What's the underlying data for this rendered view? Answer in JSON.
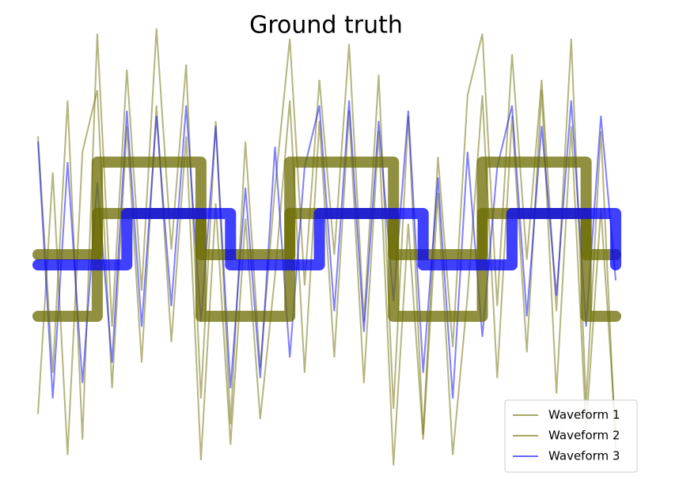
{
  "chart_data": {
    "type": "line",
    "title": "Ground truth",
    "x": [
      0,
      1,
      2,
      3,
      4,
      5,
      6,
      7,
      8,
      9,
      10,
      11,
      12,
      13,
      14,
      15,
      16,
      17,
      18,
      19,
      20,
      21,
      22,
      23,
      24,
      25,
      26,
      27,
      28,
      29,
      30,
      31,
      32,
      33,
      34,
      35,
      36,
      37,
      38,
      39
    ],
    "xlim": [
      0,
      39
    ],
    "ylim": [
      -4,
      4.7
    ],
    "legend": "lower right",
    "series": [
      {
        "name": "Waveform 1",
        "color": "#6b6b00",
        "levels": [
          0.2,
          0.2,
          0.2,
          0.2,
          2,
          2,
          2,
          2,
          2,
          2,
          2,
          0.2,
          0.2,
          0.2,
          0.2,
          0.2,
          0.2,
          2,
          2,
          2,
          2,
          2,
          2,
          2,
          0.2,
          0.2,
          0.2,
          0.2,
          0.2,
          0.2,
          2,
          2,
          2,
          2,
          2,
          2,
          2,
          0.2,
          0.2,
          0.2
        ],
        "values": [
          2.5,
          -2.1,
          3.2,
          -3.4,
          4.5,
          -1.2,
          3.8,
          -0.5,
          4.6,
          0.3,
          3.9,
          -2.6,
          2.8,
          -3.1,
          2.4,
          -2.0,
          1.5,
          4.4,
          -0.4,
          3.6,
          0.2,
          4.3,
          -1.1,
          3.7,
          -2.8,
          2.9,
          -3.3,
          2.1,
          -1.6,
          3.3,
          4.5,
          -0.8,
          4.1,
          0.1,
          3.6,
          -0.9,
          4.4,
          -2.7,
          2.6,
          -3.6
        ]
      },
      {
        "name": "Waveform 2",
        "color": "#6b6b00",
        "levels": [
          -1,
          -1,
          -1,
          -1,
          1,
          1,
          1,
          1,
          1,
          1,
          1,
          -1,
          -1,
          -1,
          -1,
          -1,
          -1,
          1,
          1,
          1,
          1,
          1,
          1,
          1,
          -1,
          -1,
          -1,
          -1,
          -1,
          -1,
          1,
          1,
          1,
          1,
          1,
          1,
          1,
          -1,
          -1,
          -1
        ],
        "values": [
          -2.9,
          1.8,
          -3.7,
          2.2,
          3.4,
          -2.4,
          2.7,
          -1.9,
          3.1,
          -1.5,
          2.5,
          -3.8,
          1.2,
          -3.5,
          0.9,
          -3.0,
          -0.2,
          3.2,
          -2.1,
          2.8,
          -1.8,
          3.0,
          -2.3,
          2.6,
          -3.9,
          0.8,
          -3.4,
          1.4,
          -3.7,
          -0.6,
          3.3,
          -2.2,
          2.9,
          -1.7,
          3.4,
          -2.5,
          2.7,
          -3.2,
          1.1,
          -3.3
        ]
      },
      {
        "name": "Waveform 3",
        "color": "#0000ff",
        "levels": [
          0,
          0,
          0,
          0,
          0,
          0,
          1,
          1,
          1,
          1,
          1,
          1,
          1,
          0,
          0,
          0,
          0,
          0,
          0,
          1,
          1,
          1,
          1,
          1,
          1,
          1,
          0,
          0,
          0,
          0,
          0,
          0,
          1,
          1,
          1,
          1,
          1,
          1,
          1,
          0
        ],
        "values": [
          2.4,
          -2.6,
          2.0,
          -2.3,
          1.6,
          -1.9,
          3.0,
          -1.2,
          2.9,
          -0.8,
          3.1,
          -1.1,
          2.7,
          -2.4,
          1.5,
          -2.2,
          2.3,
          -1.8,
          1.9,
          3.1,
          -0.9,
          3.2,
          -1.3,
          2.8,
          -0.7,
          3.0,
          -2.1,
          1.7,
          -2.6,
          2.2,
          -1.4,
          1.9,
          3.1,
          -1.0,
          2.7,
          -0.6,
          3.2,
          -1.2,
          2.9,
          -0.3
        ]
      }
    ]
  }
}
